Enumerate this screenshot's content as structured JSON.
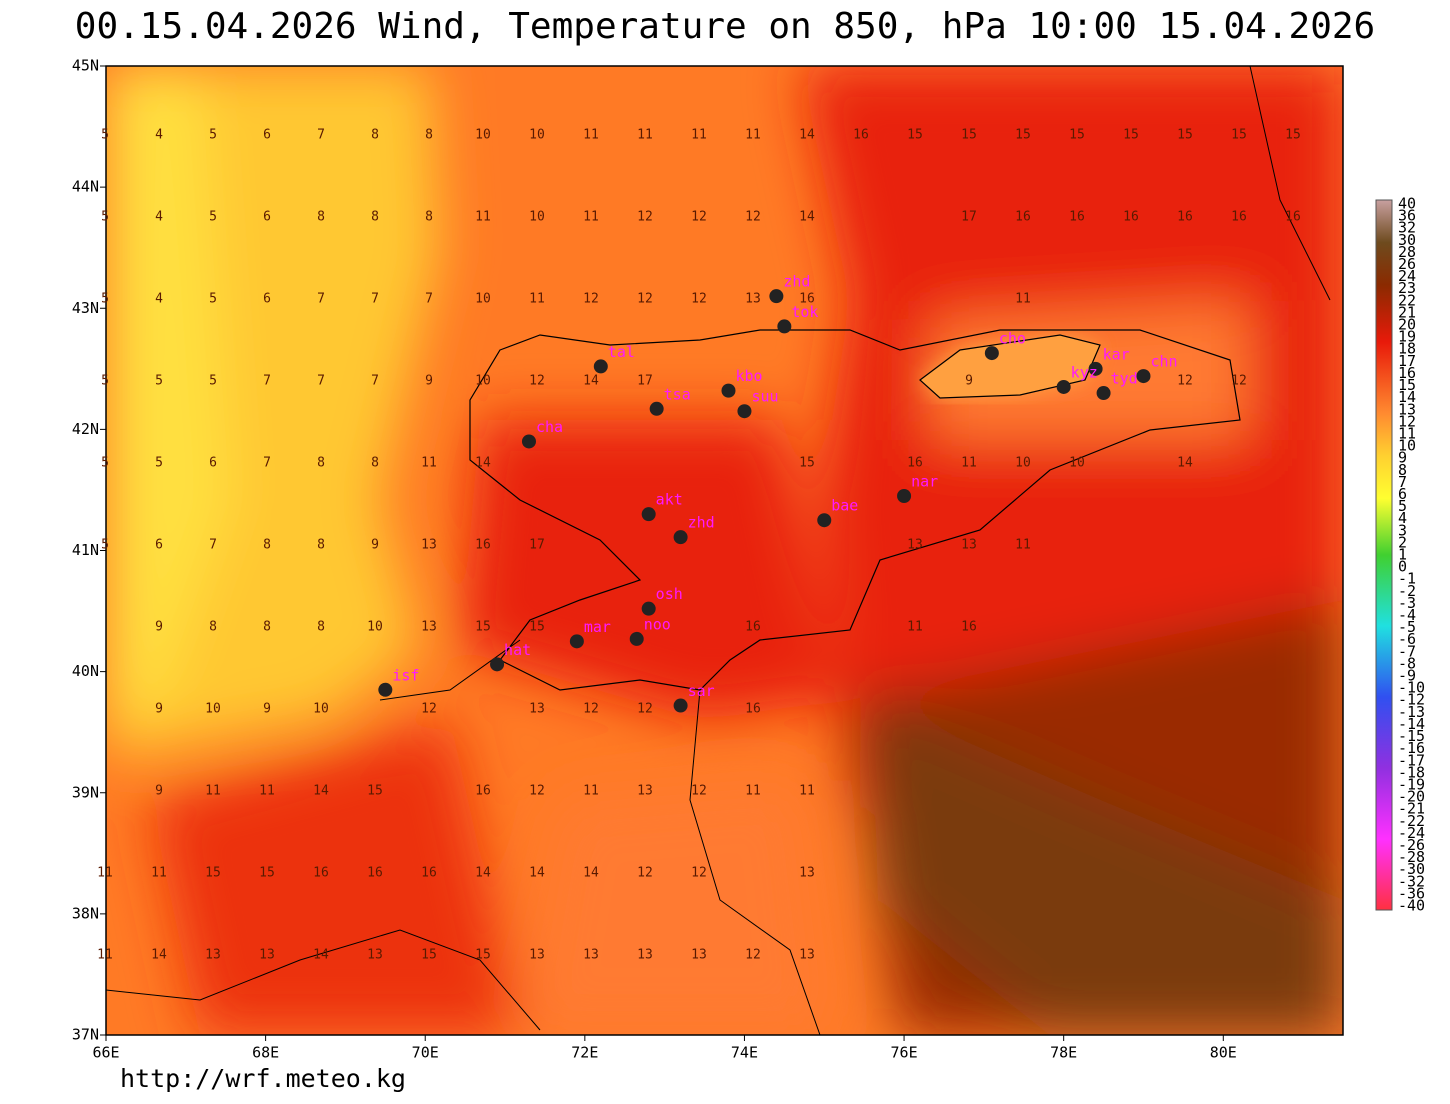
{
  "header": {
    "title": "00.15.04.2026 Wind, Temperature on 850, hPa 10:00 15.04.2026"
  },
  "footer": {
    "url": "http://wrf.meteo.kg"
  },
  "map": {
    "lon_range": [
      66,
      81.5
    ],
    "lat_range": [
      37,
      45
    ],
    "lon_ticks": [
      {
        "value": 66,
        "label": "66E"
      },
      {
        "value": 68,
        "label": "68E"
      },
      {
        "value": 70,
        "label": "70E"
      },
      {
        "value": 72,
        "label": "72E"
      },
      {
        "value": 74,
        "label": "74E"
      },
      {
        "value": 76,
        "label": "76E"
      },
      {
        "value": 78,
        "label": "78E"
      },
      {
        "value": 80,
        "label": "80E"
      }
    ],
    "lat_ticks": [
      {
        "value": 45,
        "label": "45N"
      },
      {
        "value": 44,
        "label": "44N"
      },
      {
        "value": 43,
        "label": "43N"
      },
      {
        "value": 42,
        "label": "42N"
      },
      {
        "value": 41,
        "label": "41N"
      },
      {
        "value": 40,
        "label": "40N"
      },
      {
        "value": 39,
        "label": "39N"
      },
      {
        "value": 38,
        "label": "38N"
      },
      {
        "value": 37,
        "label": "37N"
      }
    ],
    "temperature_labels": [
      [
        5,
        4,
        5,
        6,
        7,
        8,
        8,
        10,
        10,
        11,
        11,
        11,
        11,
        14,
        16,
        15,
        15,
        15,
        15,
        15,
        15,
        15,
        15
      ],
      [
        5,
        4,
        5,
        6,
        8,
        8,
        8,
        11,
        10,
        11,
        12,
        12,
        12,
        14,
        null,
        null,
        17,
        16,
        16,
        16,
        16,
        16,
        16
      ],
      [
        5,
        4,
        5,
        6,
        7,
        7,
        7,
        10,
        11,
        12,
        12,
        12,
        13,
        16,
        null,
        null,
        null,
        11,
        null,
        null,
        null,
        null,
        null
      ],
      [
        5,
        5,
        5,
        7,
        7,
        7,
        9,
        10,
        12,
        14,
        17,
        null,
        null,
        null,
        null,
        null,
        9,
        null,
        null,
        null,
        12,
        12,
        null
      ],
      [
        5,
        5,
        6,
        7,
        8,
        8,
        11,
        14,
        null,
        null,
        null,
        null,
        null,
        15,
        null,
        16,
        11,
        10,
        10,
        null,
        14,
        null,
        null
      ],
      [
        5,
        6,
        7,
        8,
        8,
        9,
        13,
        16,
        17,
        null,
        null,
        null,
        null,
        null,
        null,
        13,
        13,
        11,
        null,
        null,
        null,
        null,
        null
      ],
      [
        null,
        9,
        8,
        8,
        8,
        10,
        13,
        15,
        15,
        null,
        null,
        null,
        16,
        null,
        null,
        11,
        16,
        null,
        null,
        null,
        null,
        null,
        null
      ],
      [
        null,
        9,
        10,
        9,
        10,
        null,
        12,
        null,
        13,
        12,
        12,
        null,
        16,
        null,
        null,
        null,
        null,
        null,
        null,
        null,
        null,
        null,
        null
      ],
      [
        null,
        9,
        11,
        11,
        14,
        15,
        null,
        16,
        12,
        11,
        13,
        12,
        11,
        11,
        null,
        null,
        null,
        null,
        null,
        null,
        null,
        null,
        null
      ],
      [
        11,
        11,
        15,
        15,
        16,
        16,
        16,
        14,
        14,
        14,
        12,
        12,
        null,
        13,
        null,
        null,
        null,
        null,
        null,
        null,
        null,
        null,
        null
      ],
      [
        11,
        14,
        13,
        13,
        14,
        13,
        15,
        15,
        13,
        13,
        13,
        13,
        12,
        13,
        null,
        null,
        null,
        null,
        null,
        null,
        null,
        null,
        null
      ]
    ],
    "cities": [
      {
        "name": "tal",
        "lon": 72.2,
        "lat": 42.52
      },
      {
        "name": "zhd",
        "lon": 74.4,
        "lat": 43.1
      },
      {
        "name": "tok",
        "lon": 74.5,
        "lat": 42.85
      },
      {
        "name": "cho",
        "lon": 77.1,
        "lat": 42.63
      },
      {
        "name": "kar",
        "lon": 78.4,
        "lat": 42.5
      },
      {
        "name": "kyz",
        "lon": 78.0,
        "lat": 42.35
      },
      {
        "name": "tyd",
        "lon": 78.5,
        "lat": 42.3
      },
      {
        "name": "chn",
        "lon": 79.0,
        "lat": 42.44
      },
      {
        "name": "kbo",
        "lon": 73.8,
        "lat": 42.32
      },
      {
        "name": "suu",
        "lon": 74.0,
        "lat": 42.15
      },
      {
        "name": "tsa",
        "lon": 72.9,
        "lat": 42.17
      },
      {
        "name": "cha",
        "lon": 71.3,
        "lat": 41.9
      },
      {
        "name": "akt",
        "lon": 72.8,
        "lat": 41.3
      },
      {
        "name": "zhd",
        "lon": 73.2,
        "lat": 41.11
      },
      {
        "name": "bae",
        "lon": 75.0,
        "lat": 41.25
      },
      {
        "name": "nar",
        "lon": 76.0,
        "lat": 41.45
      },
      {
        "name": "osh",
        "lon": 72.8,
        "lat": 40.52
      },
      {
        "name": "noo",
        "lon": 72.65,
        "lat": 40.27
      },
      {
        "name": "mar",
        "lon": 71.9,
        "lat": 40.25
      },
      {
        "name": "hat",
        "lon": 70.9,
        "lat": 40.06
      },
      {
        "name": "isf",
        "lon": 69.5,
        "lat": 39.85
      },
      {
        "name": "sar",
        "lon": 73.2,
        "lat": 39.72
      }
    ],
    "colorbar_ticks": [
      40,
      36,
      32,
      30,
      28,
      26,
      24,
      23,
      22,
      21,
      20,
      19,
      18,
      17,
      16,
      15,
      14,
      13,
      12,
      11,
      10,
      9,
      8,
      7,
      6,
      5,
      4,
      3,
      2,
      1,
      0,
      -1,
      -2,
      -3,
      -4,
      -5,
      -6,
      -7,
      -8,
      -9,
      -10,
      -12,
      -13,
      -14,
      -15,
      -16,
      -17,
      -18,
      -19,
      -20,
      -21,
      -22,
      -24,
      -26,
      -28,
      -30,
      -32,
      -36,
      -40
    ]
  }
}
